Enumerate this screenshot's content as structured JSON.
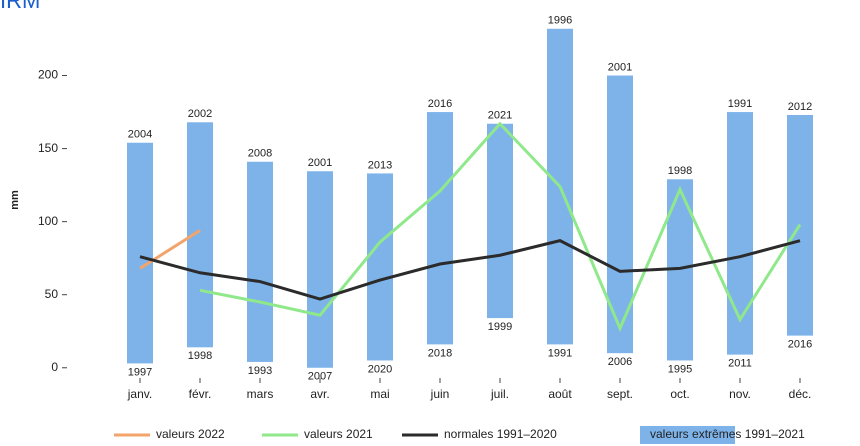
{
  "chart_data": {
    "type": "range-bar-line",
    "title": "IRM",
    "y_label": "mm",
    "categories": [
      "janv.",
      "févr.",
      "mars",
      "avr.",
      "mai",
      "juin",
      "juil.",
      "août",
      "sept.",
      "oct.",
      "nov.",
      "déc."
    ],
    "ylim": [
      -7,
      238
    ],
    "yticks": [
      0,
      50,
      100,
      150,
      200
    ],
    "bars": {
      "name": "valeurs extrêmes 1991–2021",
      "color": "#7eb3ea",
      "max": [
        154,
        168,
        141,
        134.5,
        133,
        175,
        167,
        232,
        200,
        129,
        175,
        173
      ],
      "min": [
        3,
        14,
        4,
        0,
        5,
        16,
        34,
        16,
        10,
        5,
        9,
        22
      ],
      "max_years": [
        "2004",
        "2002",
        "2008",
        "2001",
        "2013",
        "2016",
        "2021",
        "1996",
        "2001",
        "1998",
        "1991",
        "2012"
      ],
      "min_years": [
        "1997",
        "1998",
        "1993",
        "2007",
        "2020",
        "2018",
        "1999",
        "1991",
        "2006",
        "1995",
        "2011",
        "2016"
      ]
    },
    "series": [
      {
        "name": "valeurs 2022",
        "color": "#f2a46a",
        "values": [
          68,
          94,
          null,
          null,
          null,
          null,
          null,
          null,
          null,
          null,
          null,
          null
        ]
      },
      {
        "name": "valeurs 2021",
        "color": "#8fe88a",
        "values": [
          null,
          53,
          45,
          36,
          86,
          121,
          167,
          124,
          27,
          122,
          33,
          98
        ]
      },
      {
        "name": "normales 1991–2020",
        "color": "#2b2b2b",
        "values": [
          76,
          65,
          59,
          47,
          60,
          71,
          77,
          87,
          66,
          68,
          76,
          87
        ]
      }
    ]
  }
}
